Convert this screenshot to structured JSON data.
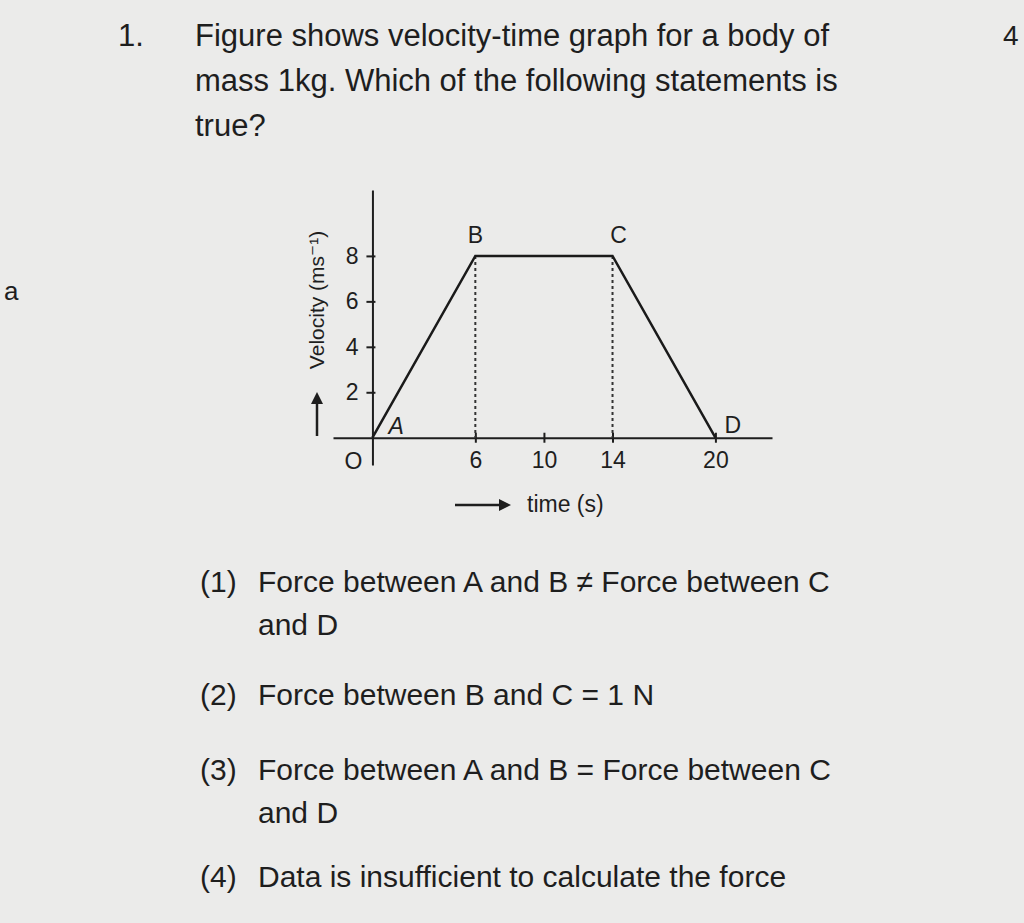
{
  "margin_marks": [
    "4",
    "a"
  ],
  "question": {
    "number": "1.",
    "lines": [
      "Figure shows velocity-time graph for a body of",
      "mass 1kg. Which of the following statements is",
      "true?"
    ]
  },
  "chart_data": {
    "type": "line",
    "x": [
      0,
      6,
      14,
      20
    ],
    "values": [
      0,
      8,
      8,
      0
    ],
    "point_labels": [
      "A",
      "B",
      "C",
      "D"
    ],
    "origin_label": "O",
    "color": "#1a1a1a",
    "x_label": "time (s)",
    "y_label": "Velocity (ms⁻¹)",
    "xlim": [
      -2.3,
      23.3
    ],
    "ylim": [
      -1.2,
      10.9
    ],
    "xticks": [
      6,
      10,
      14,
      20
    ],
    "yticks": [
      2,
      4,
      6,
      8
    ]
  },
  "options": [
    {
      "number": "(1)",
      "lines": [
        "Force between A and B ≠ Force between C",
        "and D"
      ]
    },
    {
      "number": "(2)",
      "lines": [
        "Force between B and C = 1 N"
      ]
    },
    {
      "number": "(3)",
      "lines": [
        "Force between A and B = Force between C",
        "and D"
      ]
    },
    {
      "number": "(4)",
      "lines": [
        "Data is insufficient to calculate the force"
      ]
    }
  ]
}
